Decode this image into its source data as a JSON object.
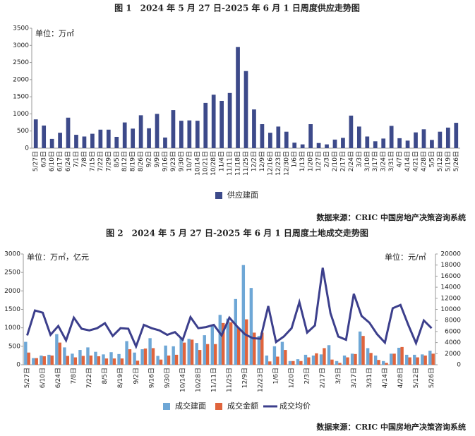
{
  "chart_data": [
    {
      "type": "bar",
      "title": "图 1　2024 年 5 月 27 日-2025 年 6 月 1 日周度供应走势图",
      "y_label": "单位：万㎡",
      "source": "数据来源：CRIC 中国房地产决策咨询系统",
      "categories": [
        "5/27日",
        "6/3日",
        "6/10日",
        "6/17日",
        "6/24日",
        "7/1日",
        "7/8日",
        "7/15日",
        "7/22日",
        "7/29日",
        "8/5日",
        "8/12日",
        "8/19日",
        "8/26日",
        "9/2日",
        "9/9日",
        "9/16日",
        "9/23日",
        "9/30日",
        "10/7日",
        "10/14日",
        "10/21日",
        "10/28日",
        "11/4日",
        "11/11日",
        "11/18日",
        "11/25日",
        "12/2日",
        "12/9日",
        "12/16日",
        "12/23日",
        "12/30日",
        "1/6日",
        "1/13日",
        "1/20日",
        "1/27日",
        "2/3日",
        "2/10日",
        "2/17日",
        "2/24日",
        "3/3日",
        "3/10日",
        "3/17日",
        "3/24日",
        "3/31日",
        "4/7日",
        "4/14日",
        "4/21日",
        "4/28日",
        "5/5日",
        "5/12日",
        "5/19日",
        "5/26日"
      ],
      "series": [
        {
          "name": "供应建面",
          "color": "#3d4a8a",
          "values": [
            840,
            660,
            270,
            450,
            890,
            390,
            340,
            420,
            540,
            540,
            330,
            750,
            570,
            960,
            580,
            1000,
            310,
            1110,
            800,
            810,
            800,
            1320,
            1560,
            1380,
            1610,
            2950,
            2250,
            1130,
            700,
            450,
            630,
            480,
            160,
            110,
            700,
            150,
            110,
            250,
            300,
            950,
            630,
            340,
            200,
            280,
            650,
            290,
            220,
            460,
            550,
            240,
            480,
            600,
            740
          ]
        }
      ],
      "ylim": [
        0,
        3500
      ],
      "yticks": [
        0,
        500,
        1000,
        1500,
        2000,
        2500,
        3000,
        3500
      ]
    },
    {
      "type": "bar-line",
      "title": "图 2　2024 年 5 月 27 日-2025 年 6 月 1 日周度土地成交走势图",
      "y_label": "单位：万㎡，亿元",
      "y2_label": "单位：元/㎡",
      "source": "数据来源：CRIC 中国房地产决策咨询系统",
      "categories": [
        "5/27日",
        null,
        "6/10日",
        null,
        "6/24日",
        null,
        "7/8日",
        null,
        "7/22日",
        null,
        "8/5日",
        null,
        "8/19日",
        null,
        "9/2日",
        null,
        "9/16日",
        null,
        "9/30日",
        null,
        "10/14日",
        null,
        "10/28日",
        null,
        "11/11日",
        null,
        "11/25日",
        null,
        "12/9日",
        null,
        "12/23日",
        null,
        "1/6日",
        null,
        "1/20日",
        null,
        "2/3日",
        null,
        "2/17日",
        null,
        "3/3日",
        null,
        "3/17日",
        null,
        "3/31日",
        null,
        "4/14日",
        null,
        "4/28日",
        null,
        "5/12日",
        null,
        "5/26日"
      ],
      "series": [
        {
          "name": "成交建面",
          "color": "#6ea7d6",
          "values": [
            620,
            180,
            250,
            270,
            830,
            470,
            300,
            400,
            470,
            350,
            280,
            340,
            290,
            640,
            330,
            420,
            720,
            240,
            520,
            500,
            720,
            700,
            590,
            800,
            1050,
            1350,
            1250,
            1780,
            2700,
            2080,
            780,
            250,
            500,
            620,
            100,
            150,
            270,
            250,
            280,
            530,
            100,
            250,
            300,
            900,
            450,
            250,
            100,
            300,
            460,
            270,
            270,
            280,
            380
          ]
        },
        {
          "name": "成交金额",
          "color": "#e0643c",
          "values": [
            330,
            180,
            230,
            250,
            600,
            240,
            200,
            240,
            250,
            230,
            170,
            170,
            170,
            420,
            110,
            440,
            450,
            140,
            250,
            270,
            600,
            680,
            400,
            560,
            560,
            1130,
            1150,
            1000,
            1230,
            870,
            870,
            90,
            220,
            400,
            100,
            100,
            200,
            310,
            450,
            140,
            50,
            200,
            290,
            780,
            320,
            130,
            50,
            300,
            480,
            200,
            200,
            250,
            300
          ]
        },
        {
          "name": "成交均价",
          "color": "#3c3f8c",
          "axis": "y2",
          "values": [
            5300,
            9800,
            9400,
            5400,
            7000,
            4400,
            8500,
            6500,
            6200,
            6600,
            7500,
            5200,
            6600,
            6500,
            3300,
            7200,
            6600,
            6200,
            5400,
            5900,
            4500,
            8600,
            6600,
            6800,
            7200,
            5300,
            8500,
            6900,
            5500,
            4800,
            4700,
            10600,
            4100,
            5100,
            6600,
            11300,
            5800,
            7100,
            17500,
            9300,
            5100,
            4500,
            12800,
            8800,
            7600,
            5500,
            4000,
            10200,
            10800,
            7200,
            3900,
            8000,
            6600
          ]
        }
      ],
      "ylim": [
        0,
        3000
      ],
      "yticks": [
        0,
        500,
        1000,
        1500,
        2000,
        2500,
        3000
      ],
      "y2lim": [
        0,
        20000
      ],
      "y2ticks": [
        0,
        2000,
        4000,
        6000,
        8000,
        10000,
        12000,
        14000,
        16000,
        18000,
        20000
      ]
    }
  ]
}
